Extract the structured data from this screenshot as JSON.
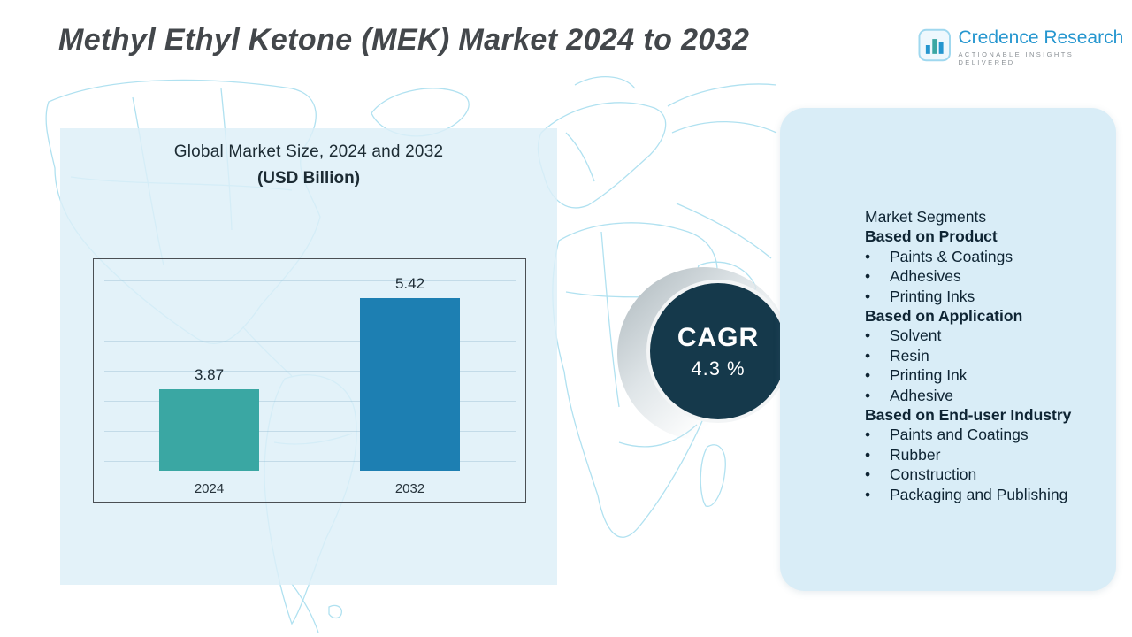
{
  "colors": {
    "bar_2024": "#3aa7a3",
    "bar_2032": "#1d7fb2",
    "cagr_circle": "#15394b",
    "panel_bg": "#d9edf7",
    "map_line": "#96d7ec",
    "title_text": "#43474b",
    "logo_blue": "#2596cf"
  },
  "header": {
    "title": "Methyl Ethyl Ketone (MEK) Market 2024 to 2032",
    "logo": {
      "name": "Credence Research",
      "tagline": "Actionable Insights Delivered"
    }
  },
  "chart": {
    "title_line1": "Global Market Size, 2024 and 2032",
    "title_line2": "(USD Billion)"
  },
  "chart_data": {
    "type": "bar",
    "title": "Global Market Size, 2024 and 2032 (USD Billion)",
    "categories": [
      "2024",
      "2032"
    ],
    "values": [
      3.87,
      5.42
    ],
    "xlabel": "",
    "ylabel": "USD Billion",
    "ylim": [
      2.5,
      6.1
    ],
    "grid": true,
    "grid_lines": 7,
    "legend": "none",
    "bar_colors": [
      "#3aa7a3",
      "#1d7fb2"
    ]
  },
  "cagr": {
    "label": "CAGR",
    "value": "4.3 %"
  },
  "segments": {
    "title": "Market Segments",
    "groups": [
      {
        "heading": "Based on Product",
        "items": [
          "Paints & Coatings",
          "Adhesives",
          "Printing Inks"
        ]
      },
      {
        "heading": "Based on Application",
        "items": [
          "Solvent",
          "Resin",
          "Printing Ink",
          "Adhesive"
        ]
      },
      {
        "heading": "Based on End-user Industry",
        "items": [
          "Paints and Coatings",
          "Rubber",
          "Construction",
          "Packaging and Publishing"
        ]
      }
    ]
  }
}
